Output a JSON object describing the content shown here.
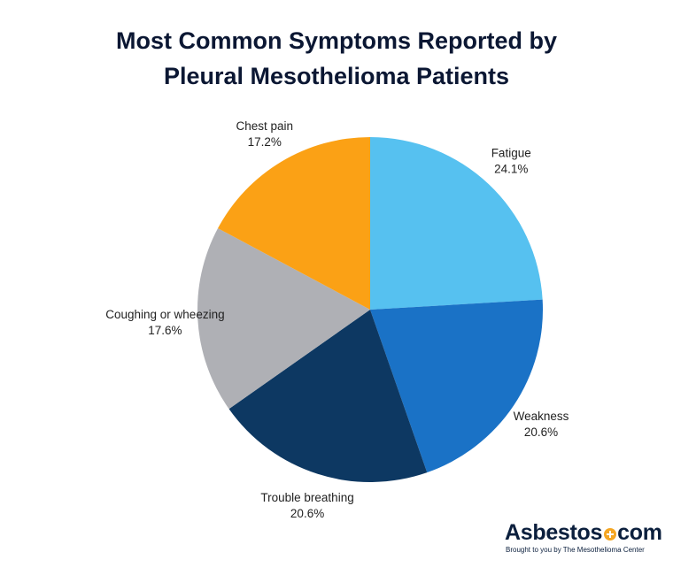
{
  "chart_data": {
    "type": "pie",
    "title_lines": [
      "Most Common Symptoms Reported by",
      "Pleural Mesothelioma Patients"
    ],
    "slices": [
      {
        "label": "Fatigue",
        "value": 24.1,
        "display": "24.1%",
        "color": "#56C1F0"
      },
      {
        "label": "Weakness",
        "value": 20.6,
        "display": "20.6%",
        "color": "#1A72C6"
      },
      {
        "label": "Trouble breathing",
        "value": 20.6,
        "display": "20.6%",
        "color": "#0D3862"
      },
      {
        "label": "Coughing or wheezing",
        "value": 17.6,
        "display": "17.6%",
        "color": "#AFB0B5"
      },
      {
        "label": "Chest pain",
        "value": 17.2,
        "display": "17.2%",
        "color": "#FBA115"
      }
    ],
    "start": "12 o'clock",
    "direction": "clockwise",
    "legend": "none"
  },
  "logo": {
    "name_left": "Asbestos",
    "name_right": "com",
    "tagline": "Brought to you by The Mesothelioma Center"
  }
}
